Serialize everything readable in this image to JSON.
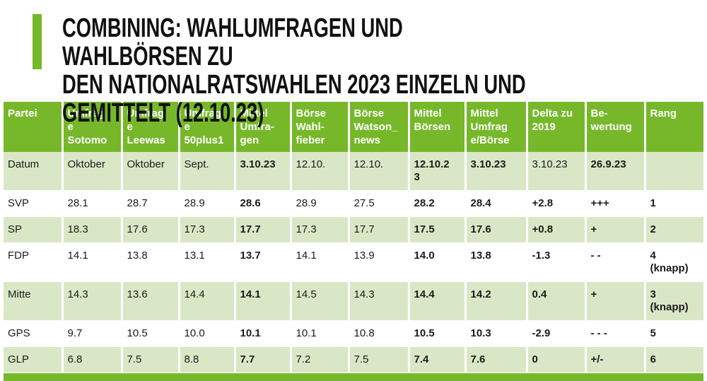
{
  "colors": {
    "accent": "#76b82a",
    "row_alt": "#d9e7c6",
    "header_text": "#ffffff",
    "body_text": "#1b1b1b"
  },
  "title": "COMBINING: WAHLUMFRAGEN UND WAHLBÖRSEN ZU\nDEN NATIONALRATSWAHLEN 2023 EINZELN UND\nGEMITTELT (12.10.23)",
  "chart_data": {
    "type": "table",
    "title": "Wahlumfragen und Wahlbörsen zu den Nationalratswahlen 2023 einzeln und gemittelt (12.10.23)",
    "columns": [
      "Partei",
      "Umfrag\ne\nSotomo",
      "Umfrag\ne\nLeewas",
      "Umfrag\ne\n50plus1",
      "Mittel\nUmfra-\ngen",
      "Börse\nWahl-\nfieber",
      "Börse\nWatson_\nnews",
      "Mittel\nBörsen",
      "Mittel\nUmfrag\ne/Börse",
      "Delta zu\n2019",
      "Be-\nwertung",
      "Rang"
    ],
    "rows": [
      {
        "bg": "green",
        "cells": [
          {
            "t": "Datum"
          },
          {
            "t": "Oktober"
          },
          {
            "t": "Oktober"
          },
          {
            "t": "Sept."
          },
          {
            "t": "3.10.23",
            "b": true
          },
          {
            "t": "12.10."
          },
          {
            "t": "12.10."
          },
          {
            "t": "12.10.2\n3",
            "b": true
          },
          {
            "t": "3.10.23",
            "b": true
          },
          {
            "t": "3.10.23"
          },
          {
            "t": "26.9.23",
            "b": true
          },
          {
            "t": ""
          }
        ]
      },
      {
        "bg": "white",
        "cells": [
          {
            "t": "SVP"
          },
          {
            "t": "28.1"
          },
          {
            "t": "28.7"
          },
          {
            "t": "28.9"
          },
          {
            "t": "28.6",
            "b": true
          },
          {
            "t": "28.9"
          },
          {
            "t": "27.5"
          },
          {
            "t": "28.2",
            "b": true
          },
          {
            "t": "28.4",
            "b": true
          },
          {
            "t": "+2.8",
            "b": true
          },
          {
            "t": "+++",
            "b": true
          },
          {
            "t": "1",
            "b": true
          }
        ]
      },
      {
        "bg": "green",
        "cells": [
          {
            "t": "SP"
          },
          {
            "t": "18.3"
          },
          {
            "t": "17.6"
          },
          {
            "t": "17.3"
          },
          {
            "t": "17.7",
            "b": true
          },
          {
            "t": "17.3"
          },
          {
            "t": "17.7"
          },
          {
            "t": "17.5",
            "b": true
          },
          {
            "t": "17.6",
            "b": true
          },
          {
            "t": "+0.8",
            "b": true
          },
          {
            "t": "+",
            "b": true
          },
          {
            "t": "2",
            "b": true
          }
        ]
      },
      {
        "bg": "white",
        "cells": [
          {
            "t": "FDP"
          },
          {
            "t": "14.1"
          },
          {
            "t": "13.8"
          },
          {
            "t": "13.1"
          },
          {
            "t": "13.7",
            "b": true
          },
          {
            "t": "14.1"
          },
          {
            "t": "13.9"
          },
          {
            "t": "14.0",
            "b": true
          },
          {
            "t": "13.8",
            "b": true
          },
          {
            "t": "-1.3",
            "b": true
          },
          {
            "t": "- -",
            "b": true
          },
          {
            "t": "4\n(knapp)",
            "b": true
          }
        ]
      },
      {
        "bg": "green",
        "cells": [
          {
            "t": "Mitte"
          },
          {
            "t": "14.3"
          },
          {
            "t": "13.6"
          },
          {
            "t": "14.4"
          },
          {
            "t": "14.1",
            "b": true
          },
          {
            "t": "14.5"
          },
          {
            "t": "14.3"
          },
          {
            "t": "14.4",
            "b": true
          },
          {
            "t": "14.2",
            "b": true
          },
          {
            "t": "0.4",
            "b": true
          },
          {
            "t": "+",
            "b": true
          },
          {
            "t": "3\n(knapp)",
            "b": true
          }
        ]
      },
      {
        "bg": "white",
        "cells": [
          {
            "t": "GPS"
          },
          {
            "t": "9.7"
          },
          {
            "t": "10.5"
          },
          {
            "t": "10.0"
          },
          {
            "t": "10.1",
            "b": true
          },
          {
            "t": "10.1"
          },
          {
            "t": "10.8"
          },
          {
            "t": "10.5",
            "b": true
          },
          {
            "t": "10.3",
            "b": true
          },
          {
            "t": "-2.9",
            "b": true
          },
          {
            "t": "- - -",
            "b": true
          },
          {
            "t": "5",
            "b": true
          }
        ]
      },
      {
        "bg": "green",
        "cells": [
          {
            "t": "GLP"
          },
          {
            "t": "6.8"
          },
          {
            "t": "7.5"
          },
          {
            "t": "8.8"
          },
          {
            "t": "7.7",
            "b": true
          },
          {
            "t": "7.2"
          },
          {
            "t": "7.5"
          },
          {
            "t": "7.4",
            "b": true
          },
          {
            "t": "7.6",
            "b": true
          },
          {
            "t": "0",
            "b": true
          },
          {
            "t": "+/-",
            "b": true
          },
          {
            "t": "6",
            "b": true
          }
        ]
      }
    ]
  }
}
